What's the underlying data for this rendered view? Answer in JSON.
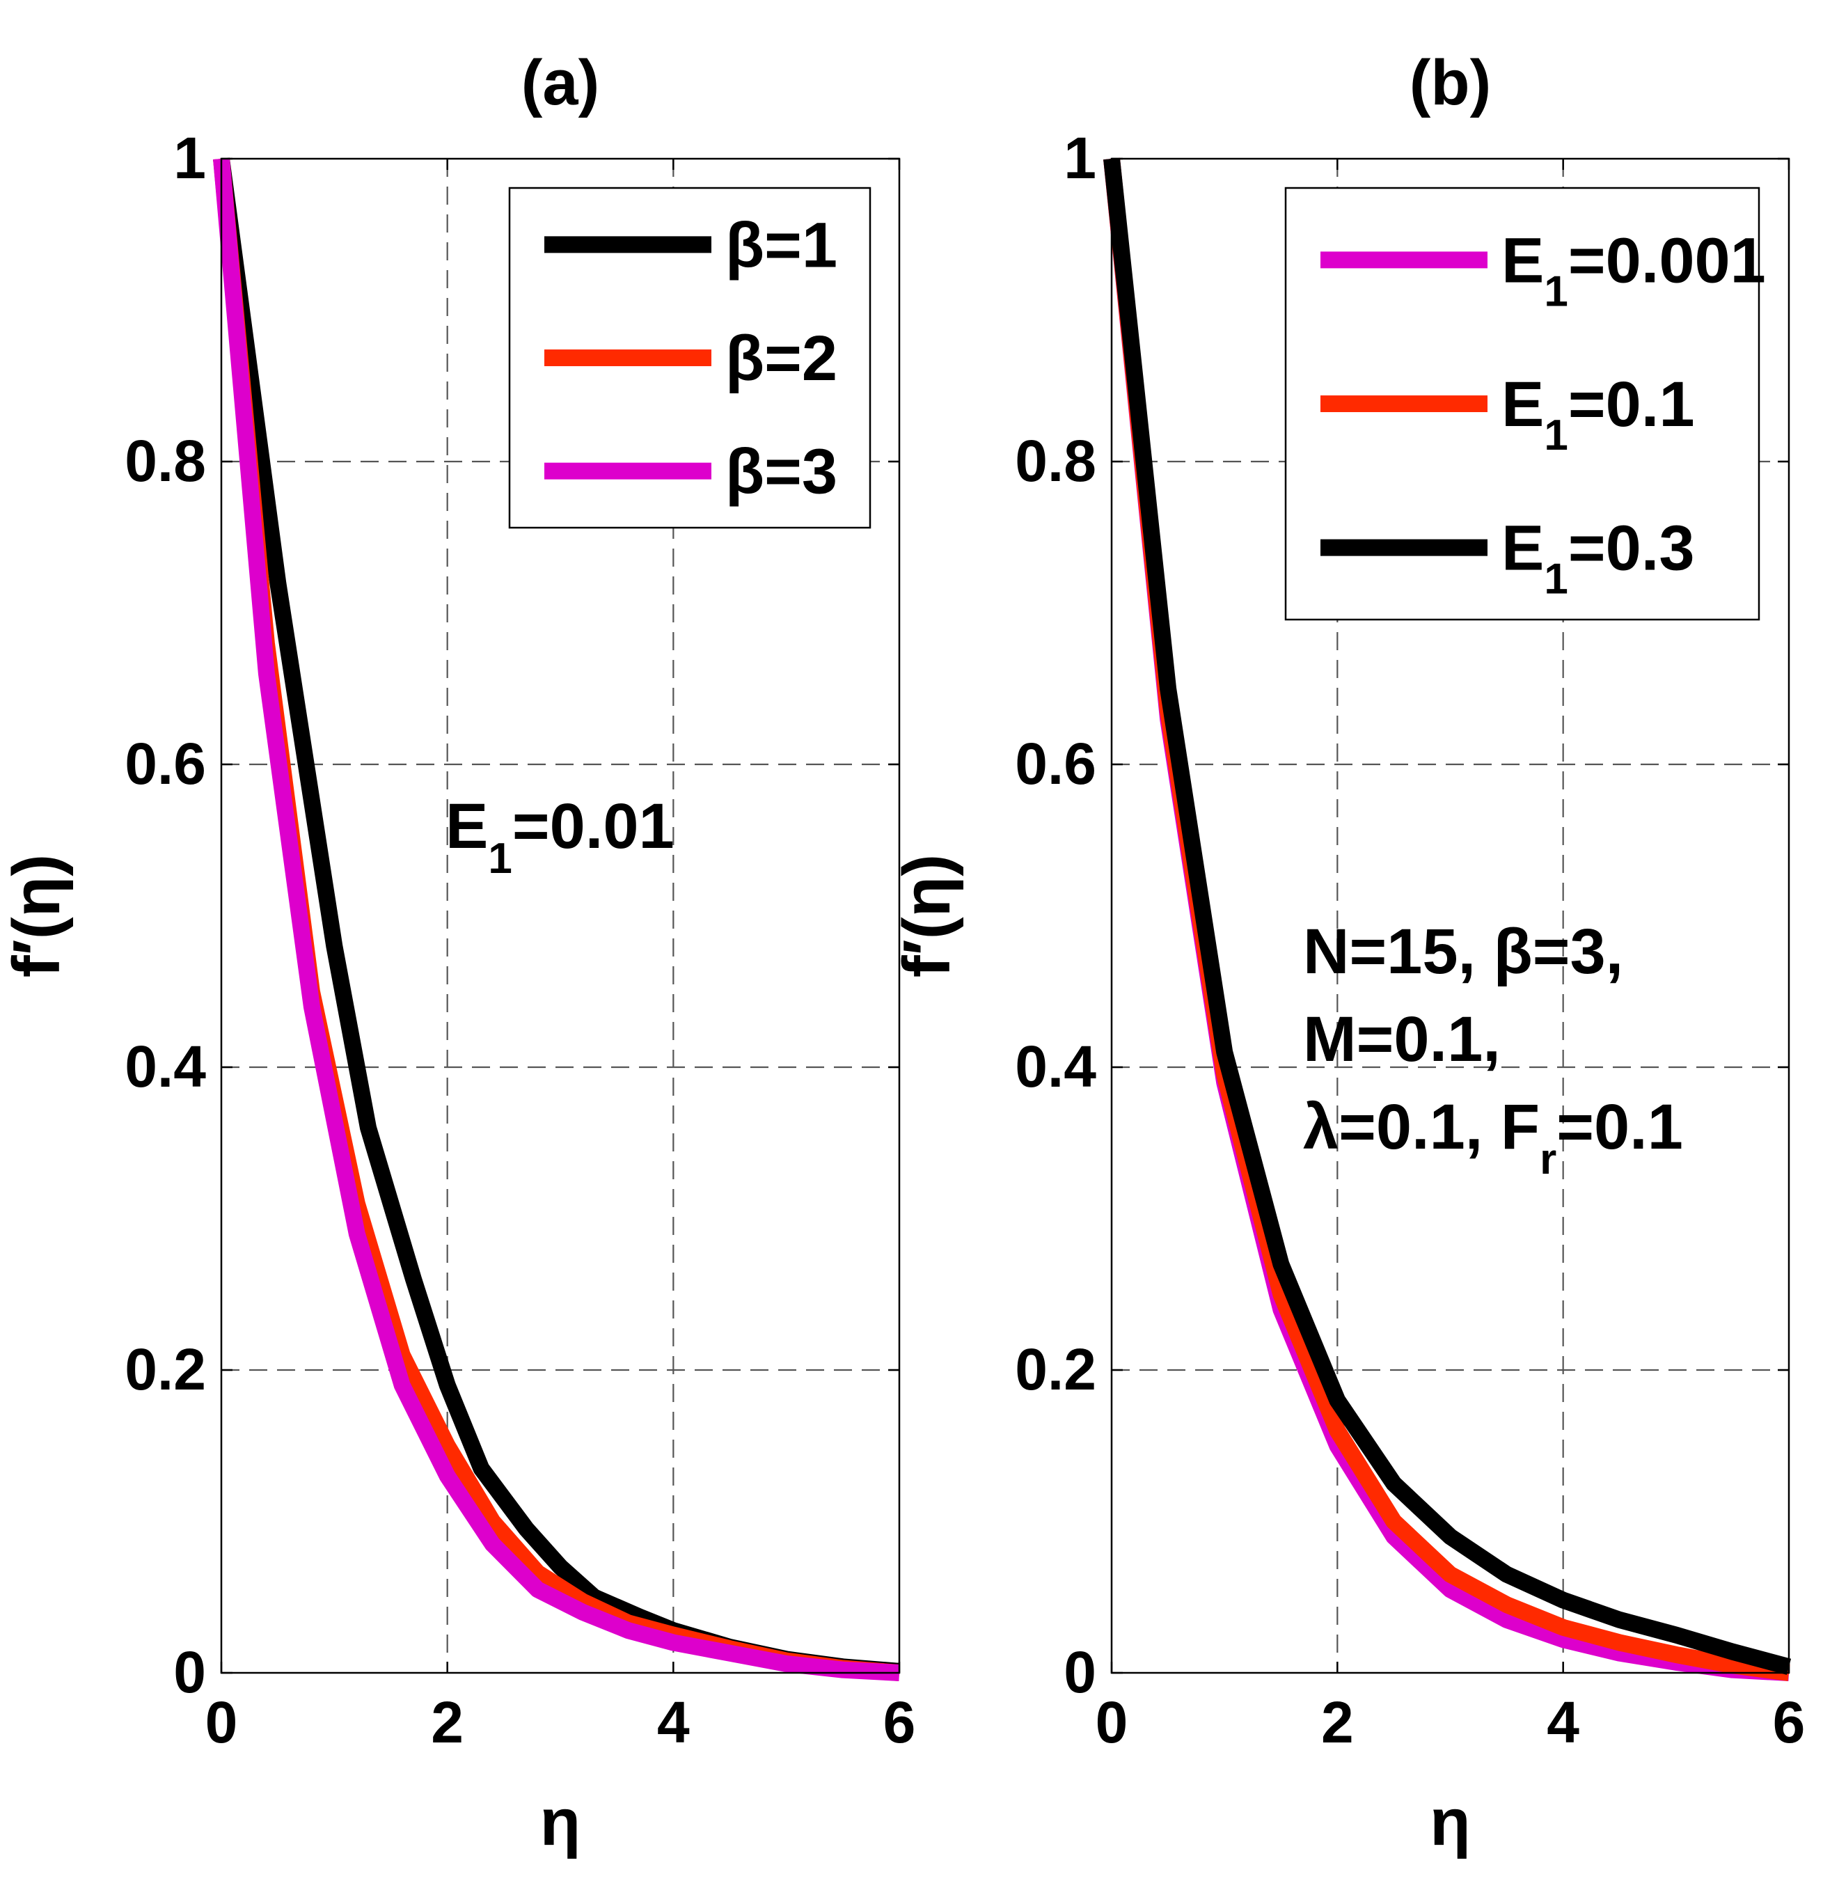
{
  "chart_data": [
    {
      "id": "a",
      "type": "line",
      "title": "(a)",
      "xlabel": "η",
      "ylabel": "f′(η)",
      "xlim": [
        0,
        6
      ],
      "ylim": [
        0,
        1
      ],
      "xticks": [
        0,
        2,
        4,
        6
      ],
      "yticks": [
        0,
        0.2,
        0.4,
        0.6,
        0.8,
        1
      ],
      "xtick_labels": [
        "0",
        "2",
        "4",
        "6"
      ],
      "ytick_labels": [
        "0",
        "0.2",
        "0.4",
        "0.6",
        "0.8",
        "1"
      ],
      "grid": true,
      "legend_position": "top-right",
      "annotation": {
        "lines": [
          {
            "main": "E",
            "sub": "1",
            "rest": "=0.01"
          }
        ]
      },
      "series": [
        {
          "name": "β=1",
          "label_main": "β=1",
          "label_sub": "",
          "color": "#000000",
          "x": [
            0,
            0.5,
            1,
            1.3,
            1.7,
            2,
            2.3,
            2.7,
            3,
            3.3,
            3.7,
            4,
            4.5,
            5,
            5.5,
            6
          ],
          "y": [
            1,
            0.72,
            0.48,
            0.36,
            0.26,
            0.19,
            0.135,
            0.095,
            0.07,
            0.05,
            0.037,
            0.028,
            0.017,
            0.009,
            0.004,
            0.001
          ]
        },
        {
          "name": "β=2",
          "label_main": "β=2",
          "label_sub": "",
          "color": "#ff2a00",
          "x": [
            0,
            0.4,
            0.8,
            1.2,
            1.6,
            2,
            2.4,
            2.8,
            3.2,
            3.6,
            4,
            4.5,
            5,
            5.5,
            6
          ],
          "y": [
            1,
            0.68,
            0.45,
            0.31,
            0.21,
            0.15,
            0.1,
            0.066,
            0.047,
            0.033,
            0.025,
            0.016,
            0.008,
            0.003,
            0.0
          ]
        },
        {
          "name": "β=3",
          "label_main": "β=3",
          "label_sub": "",
          "color": "#dd00cc",
          "x": [
            0,
            0.4,
            0.8,
            1.2,
            1.6,
            2,
            2.4,
            2.8,
            3.2,
            3.6,
            4,
            4.5,
            5,
            5.5,
            6
          ],
          "y": [
            1,
            0.66,
            0.44,
            0.29,
            0.19,
            0.13,
            0.085,
            0.055,
            0.04,
            0.028,
            0.02,
            0.013,
            0.006,
            0.002,
            0.0
          ]
        }
      ]
    },
    {
      "id": "b",
      "type": "line",
      "title": "(b)",
      "xlabel": "η",
      "ylabel": "f′(η)",
      "xlim": [
        0,
        6
      ],
      "ylim": [
        0,
        1
      ],
      "xticks": [
        0,
        2,
        4,
        6
      ],
      "yticks": [
        0,
        0.2,
        0.4,
        0.6,
        0.8,
        1
      ],
      "xtick_labels": [
        "0",
        "2",
        "4",
        "6"
      ],
      "ytick_labels": [
        "0",
        "0.2",
        "0.4",
        "0.6",
        "0.8",
        "1"
      ],
      "grid": true,
      "legend_position": "top-right",
      "annotation": {
        "lines": [
          {
            "main": "N=15, β=3,",
            "sub": "",
            "rest": ""
          },
          {
            "main": "M=0.1,",
            "sub": "",
            "rest": ""
          },
          {
            "main": "λ=0.1, F",
            "sub": "r",
            "rest": "=0.1"
          }
        ]
      },
      "series": [
        {
          "name": "E1=0.001",
          "label_main": "E",
          "label_sub": "1",
          "label_rest": "=0.001",
          "color": "#dd00cc",
          "x": [
            0,
            0.5,
            1,
            1.5,
            2,
            2.5,
            3,
            3.5,
            4,
            4.5,
            5,
            5.5,
            6
          ],
          "y": [
            1,
            0.63,
            0.39,
            0.24,
            0.15,
            0.09,
            0.055,
            0.035,
            0.022,
            0.013,
            0.007,
            0.002,
            0.0
          ]
        },
        {
          "name": "E1=0.1",
          "label_main": "E",
          "label_sub": "1",
          "label_rest": "=0.1",
          "color": "#ff2a00",
          "x": [
            0,
            0.5,
            1,
            1.5,
            2,
            2.5,
            3,
            3.5,
            4,
            4.5,
            5,
            5.5,
            6
          ],
          "y": [
            1,
            0.635,
            0.395,
            0.25,
            0.16,
            0.1,
            0.065,
            0.045,
            0.03,
            0.02,
            0.012,
            0.005,
            0.0
          ]
        },
        {
          "name": "E1=0.3",
          "label_main": "E",
          "label_sub": "1",
          "label_rest": "=0.3",
          "color": "#000000",
          "x": [
            0,
            0.5,
            1,
            1.5,
            2,
            2.5,
            3,
            3.5,
            4,
            4.5,
            5,
            5.5,
            6
          ],
          "y": [
            1,
            0.65,
            0.41,
            0.27,
            0.18,
            0.125,
            0.09,
            0.065,
            0.048,
            0.035,
            0.025,
            0.014,
            0.004
          ]
        }
      ]
    }
  ]
}
